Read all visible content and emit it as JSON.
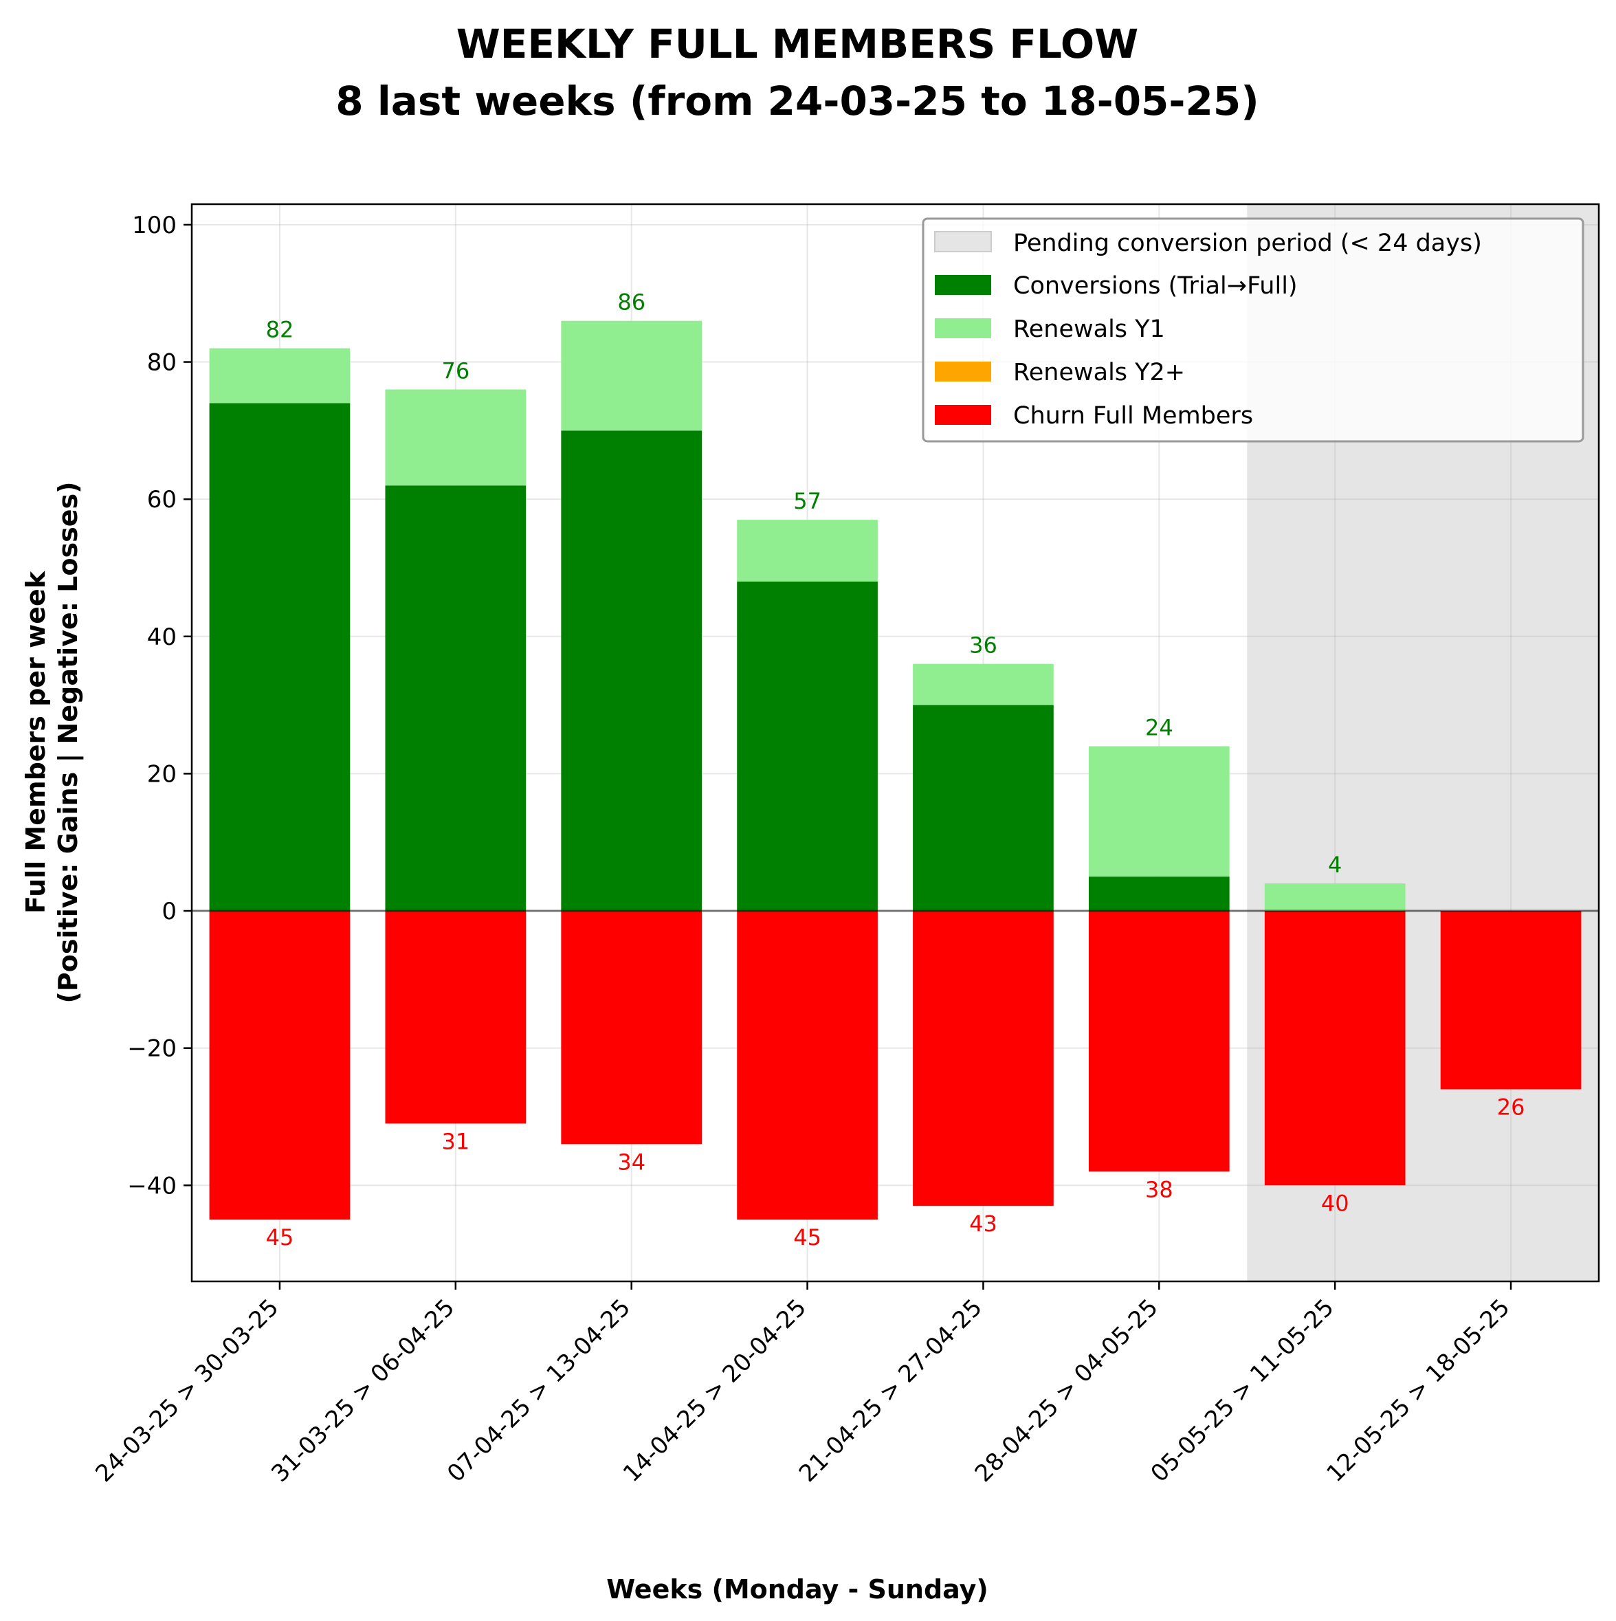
{
  "chart_data": {
    "type": "bar",
    "stacked": true,
    "title_line1": "WEEKLY FULL MEMBERS FLOW",
    "title_line2": "8 last weeks (from 24-03-25 to 18-05-25)",
    "xlabel": "Weeks (Monday - Sunday)",
    "ylabel_line1": "Full Members per week",
    "ylabel_line2": "(Positive: Gains | Negative: Losses)",
    "categories": [
      "24-03-25 > 30-03-25",
      "31-03-25 > 06-04-25",
      "07-04-25 > 13-04-25",
      "14-04-25 > 20-04-25",
      "21-04-25 > 27-04-25",
      "28-04-25 > 04-05-25",
      "05-05-25 > 11-05-25",
      "12-05-25 > 18-05-25"
    ],
    "series": [
      {
        "name": "Conversions (Trial→Full)",
        "color": "#008000",
        "values": [
          74,
          62,
          70,
          48,
          30,
          5,
          0,
          0
        ]
      },
      {
        "name": "Renewals Y1",
        "color": "#90ee90",
        "values": [
          8,
          14,
          16,
          9,
          6,
          19,
          4,
          0
        ]
      },
      {
        "name": "Renewals Y2+",
        "color": "#ffa500",
        "values": [
          0,
          0,
          0,
          0,
          0,
          0,
          0,
          0
        ]
      },
      {
        "name": "Churn Full Members",
        "color": "#ff0000",
        "values": [
          -45,
          -31,
          -34,
          -45,
          -43,
          -38,
          -40,
          -26
        ]
      }
    ],
    "gain_totals": [
      82,
      76,
      86,
      57,
      36,
      24,
      4,
      0
    ],
    "loss_totals": [
      45,
      31,
      34,
      45,
      43,
      38,
      40,
      26
    ],
    "shaded_region": {
      "label": "Pending conversion period (< 24 days)",
      "from_category_index": 5.5,
      "to_category_index": 7.5,
      "color": "#e5e5e5"
    },
    "ylim": [
      -54,
      103
    ],
    "yticks": [
      -40,
      -20,
      0,
      20,
      40,
      60,
      80,
      100
    ],
    "ytick_labels": [
      "−40",
      "−20",
      "0",
      "20",
      "40",
      "60",
      "80",
      "100"
    ],
    "grid": true,
    "legend_position": "upper-right",
    "gain_label_color": "#008000",
    "loss_label_color": "#ff0000"
  }
}
